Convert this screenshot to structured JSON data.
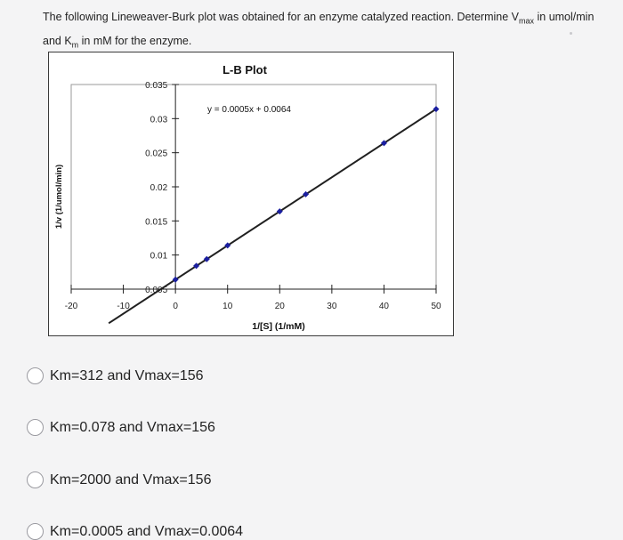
{
  "question": {
    "text_a": "The following Lineweaver-Burk plot was obtained for an enzyme catalyzed reaction. Determine V",
    "vmax_sub": "max",
    "text_b": " in umol/min and K",
    "km_sub": "m",
    "text_c": " in mM for the enzyme."
  },
  "chart_data": {
    "type": "line",
    "title": "L-B Plot",
    "xlabel": "1/[S] (1/mM)",
    "ylabel": "1/v (1/umol/min)",
    "equation": "y = 0.0005x + 0.0064",
    "xlim": [
      -20,
      50
    ],
    "ylim": [
      0.005,
      0.035
    ],
    "x_ticks": [
      -20,
      -10,
      0,
      10,
      20,
      30,
      40,
      50
    ],
    "x_tick_labels": [
      "-20",
      "-10",
      "0",
      "10",
      "20",
      "30",
      "40",
      "50"
    ],
    "y_ticks": [
      0.005,
      0.01,
      0.015,
      0.02,
      0.025,
      0.03,
      0.035
    ],
    "y_tick_labels": [
      "0.005",
      "0.01",
      "0.015",
      "0.02",
      "0.025",
      "0.03",
      "0.035"
    ],
    "fit_line": {
      "slope": 0.0005,
      "intercept": 0.0064,
      "x_range": [
        -12.8,
        50
      ]
    },
    "points": [
      {
        "x": 0,
        "y": 0.0064
      },
      {
        "x": 4,
        "y": 0.0084
      },
      {
        "x": 6,
        "y": 0.0094
      },
      {
        "x": 10,
        "y": 0.0114
      },
      {
        "x": 20,
        "y": 0.0164
      },
      {
        "x": 25,
        "y": 0.0189
      },
      {
        "x": 40,
        "y": 0.0264
      },
      {
        "x": 50,
        "y": 0.0314
      }
    ],
    "colors": {
      "line": "#202020",
      "marker": "#1b1fa0"
    }
  },
  "options": [
    {
      "label": "Km=312 and Vmax=156"
    },
    {
      "label": "Km=0.078 and Vmax=156"
    },
    {
      "label": "Km=2000 and Vmax=156"
    },
    {
      "label": "Km=0.0005 and Vmax=0.0064"
    }
  ]
}
